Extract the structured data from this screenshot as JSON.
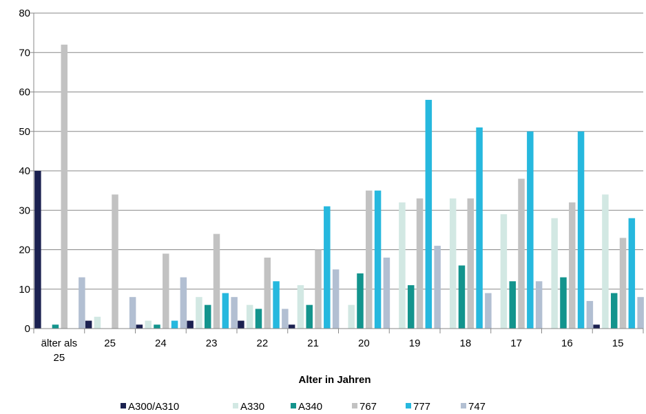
{
  "chart_data": {
    "type": "bar",
    "title": "",
    "xlabel": "Alter in Jahren",
    "ylabel": "",
    "ylim": [
      0,
      80
    ],
    "yticks": [
      0,
      10,
      20,
      30,
      40,
      50,
      60,
      70,
      80
    ],
    "grid": true,
    "legend_position": "bottom",
    "categories": [
      [
        "älter als",
        "25"
      ],
      [
        "25"
      ],
      [
        "24"
      ],
      [
        "23"
      ],
      [
        "22"
      ],
      [
        "21"
      ],
      [
        "20"
      ],
      [
        "19"
      ],
      [
        "18"
      ],
      [
        "17"
      ],
      [
        "16"
      ],
      [
        "15"
      ]
    ],
    "series": [
      {
        "name": "A300/A310",
        "color": "#1b2150",
        "values": [
          40,
          2,
          1,
          2,
          2,
          1,
          0,
          0,
          0,
          0,
          0,
          1
        ]
      },
      {
        "name": "A330",
        "color": "#d2e8e3",
        "values": [
          0,
          3,
          2,
          8,
          6,
          11,
          6,
          32,
          33,
          29,
          28,
          34
        ]
      },
      {
        "name": "A340",
        "color": "#13948d",
        "values": [
          1,
          0,
          1,
          6,
          5,
          6,
          14,
          11,
          16,
          12,
          13,
          9
        ]
      },
      {
        "name": "767",
        "color": "#c2c2c2",
        "values": [
          72,
          34,
          19,
          24,
          18,
          20,
          35,
          33,
          33,
          38,
          32,
          23
        ]
      },
      {
        "name": "777",
        "color": "#26b8de",
        "values": [
          0,
          0,
          2,
          9,
          12,
          31,
          35,
          58,
          51,
          50,
          50,
          28
        ]
      },
      {
        "name": "747",
        "color": "#b2bfd2",
        "values": [
          13,
          8,
          13,
          8,
          5,
          15,
          18,
          21,
          9,
          12,
          7,
          8
        ]
      }
    ]
  }
}
